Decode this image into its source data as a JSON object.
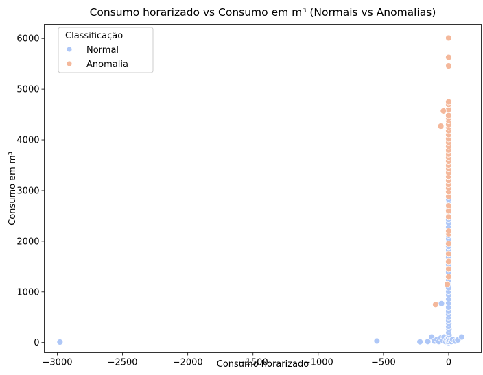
{
  "chart_data": {
    "type": "scatter",
    "title": "Consumo horarizado vs Consumo em m³ (Normais vs Anomalias)",
    "xlabel": "Consumo horarizado",
    "ylabel": "Consumo em m³",
    "xlim": [
      -3100,
      250
    ],
    "ylim": [
      -200,
      6280
    ],
    "x_ticks": [
      -3000,
      -2500,
      -2000,
      -1500,
      -1000,
      -500,
      0
    ],
    "x_tick_labels": [
      "−3000",
      "−2500",
      "−2000",
      "−1500",
      "−1000",
      "−500",
      "0"
    ],
    "y_ticks": [
      0,
      1000,
      2000,
      3000,
      4000,
      5000,
      6000
    ],
    "y_tick_labels": [
      "0",
      "1000",
      "2000",
      "3000",
      "4000",
      "5000",
      "6000"
    ],
    "grid": false,
    "legend": {
      "title": "Classificação",
      "placement": "top-left",
      "entries": [
        "Normal",
        "Anomalia"
      ]
    },
    "series": [
      {
        "name": "Normal",
        "color": "#aec7f7",
        "points": [
          [
            -2980,
            10
          ],
          [
            -550,
            30
          ],
          [
            -220,
            15
          ],
          [
            -160,
            20
          ],
          [
            -130,
            110
          ],
          [
            -110,
            30
          ],
          [
            -90,
            60
          ],
          [
            -75,
            20
          ],
          [
            -60,
            90
          ],
          [
            -55,
            770
          ],
          [
            -45,
            40
          ],
          [
            -35,
            110
          ],
          [
            -25,
            20
          ],
          [
            -15,
            60
          ],
          [
            -8,
            30
          ],
          [
            -5,
            80
          ],
          [
            0,
            0
          ],
          [
            2,
            20
          ],
          [
            4,
            50
          ],
          [
            0,
            100
          ],
          [
            3,
            150
          ],
          [
            0,
            200
          ],
          [
            2,
            260
          ],
          [
            0,
            320
          ],
          [
            1,
            380
          ],
          [
            0,
            440
          ],
          [
            0,
            500
          ],
          [
            0,
            560
          ],
          [
            0,
            620
          ],
          [
            0,
            700
          ],
          [
            0,
            780
          ],
          [
            0,
            860
          ],
          [
            0,
            940
          ],
          [
            0,
            1010
          ],
          [
            0,
            1080
          ],
          [
            0,
            1150
          ],
          [
            0,
            1230
          ],
          [
            0,
            1310
          ],
          [
            0,
            1390
          ],
          [
            0,
            1460
          ],
          [
            0,
            1540
          ],
          [
            0,
            1610
          ],
          [
            0,
            1680
          ],
          [
            0,
            1760
          ],
          [
            0,
            1830
          ],
          [
            0,
            1900
          ],
          [
            0,
            1980
          ],
          [
            0,
            2050
          ],
          [
            0,
            2120
          ],
          [
            0,
            2200
          ],
          [
            0,
            2280
          ],
          [
            0,
            2360
          ],
          [
            0,
            2430
          ],
          [
            0,
            2500
          ],
          [
            0,
            2580
          ],
          [
            0,
            2650
          ],
          [
            0,
            2720
          ],
          [
            0,
            2800
          ],
          [
            0,
            2830
          ],
          [
            0,
            2890
          ],
          [
            10,
            40
          ],
          [
            20,
            20
          ],
          [
            30,
            60
          ],
          [
            50,
            30
          ],
          [
            70,
            50
          ],
          [
            100,
            110
          ]
        ]
      },
      {
        "name": "Anomalia",
        "color": "#f4b89b",
        "points": [
          [
            -100,
            750
          ],
          [
            -10,
            1150
          ],
          [
            0,
            1300
          ],
          [
            0,
            1450
          ],
          [
            0,
            1600
          ],
          [
            0,
            1750
          ],
          [
            0,
            1950
          ],
          [
            0,
            2150
          ],
          [
            0,
            2200
          ],
          [
            0,
            2480
          ],
          [
            0,
            2600
          ],
          [
            0,
            2700
          ],
          [
            0,
            2880
          ],
          [
            0,
            2980
          ],
          [
            0,
            3050
          ],
          [
            0,
            3120
          ],
          [
            0,
            3200
          ],
          [
            0,
            3280
          ],
          [
            0,
            3350
          ],
          [
            0,
            3430
          ],
          [
            0,
            3500
          ],
          [
            0,
            3580
          ],
          [
            0,
            3650
          ],
          [
            0,
            3720
          ],
          [
            0,
            3800
          ],
          [
            0,
            3870
          ],
          [
            0,
            3950
          ],
          [
            0,
            4020
          ],
          [
            0,
            4100
          ],
          [
            0,
            4180
          ],
          [
            0,
            4250
          ],
          [
            0,
            4300
          ],
          [
            0,
            4380
          ],
          [
            0,
            4430
          ],
          [
            0,
            4480
          ],
          [
            0,
            4600
          ],
          [
            0,
            4700
          ],
          [
            0,
            4750
          ],
          [
            -60,
            4270
          ],
          [
            -40,
            4570
          ],
          [
            0,
            5460
          ],
          [
            0,
            5630
          ],
          [
            0,
            6010
          ]
        ]
      }
    ]
  }
}
